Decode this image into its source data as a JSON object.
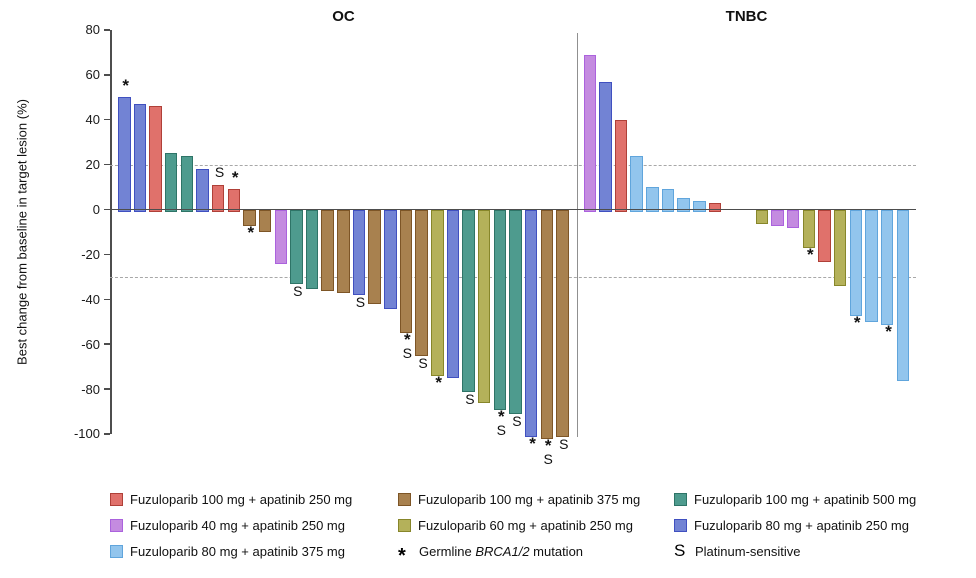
{
  "chart_data": {
    "type": "bar",
    "subtype": "waterfall",
    "ylabel": "Best change from baseline in target lesion (%)",
    "ylim": [
      -100,
      80
    ],
    "yticks": [
      80,
      60,
      40,
      20,
      0,
      -20,
      -40,
      -60,
      -80,
      -100
    ],
    "reference_lines": [
      20,
      -30
    ],
    "grid": "off",
    "legend_position": "bottom",
    "marker_meanings": {
      "star": "Germline BRCA1/2 mutation",
      "S": "Platinum-sensitive"
    },
    "colors": {
      "red": {
        "fill": "#e0716b",
        "border": "#af4038"
      },
      "blue": {
        "fill": "#7283d4",
        "border": "#4050c0"
      },
      "teal": {
        "fill": "#4e9b8e",
        "border": "#2e7467"
      },
      "brown": {
        "fill": "#a8814f",
        "border": "#7d5526"
      },
      "orchid": {
        "fill": "#c48be0",
        "border": "#ab62dd"
      },
      "olive": {
        "fill": "#b4b15a",
        "border": "#87862a"
      },
      "lightblue": {
        "fill": "#92c5ed",
        "border": "#60a5dc"
      }
    },
    "groups": [
      {
        "title": "OC",
        "bars": [
          {
            "value": 50,
            "color": "blue",
            "markers": [
              "*"
            ]
          },
          {
            "value": 47,
            "color": "blue"
          },
          {
            "value": 46,
            "color": "red"
          },
          {
            "value": 25,
            "color": "teal"
          },
          {
            "value": 24,
            "color": "teal"
          },
          {
            "value": 18,
            "color": "blue"
          },
          {
            "value": 11,
            "color": "red",
            "markers": [
              "S"
            ]
          },
          {
            "value": 9,
            "color": "red",
            "markers": [
              "*"
            ]
          },
          {
            "value": -6,
            "color": "brown",
            "markers": [
              "*"
            ]
          },
          {
            "value": -9,
            "color": "brown"
          },
          {
            "value": -23,
            "color": "orchid"
          },
          {
            "value": -32,
            "color": "teal",
            "markers": [
              "S"
            ]
          },
          {
            "value": -34,
            "color": "teal"
          },
          {
            "value": -35,
            "color": "brown"
          },
          {
            "value": -36,
            "color": "brown"
          },
          {
            "value": -37,
            "color": "blue",
            "markers": [
              "S"
            ]
          },
          {
            "value": -41,
            "color": "brown"
          },
          {
            "value": -43,
            "color": "blue"
          },
          {
            "value": -54,
            "color": "brown",
            "markers": [
              "*",
              "S"
            ]
          },
          {
            "value": -64,
            "color": "brown",
            "markers": [
              "S"
            ]
          },
          {
            "value": -73,
            "color": "olive",
            "markers": [
              "*"
            ]
          },
          {
            "value": -74,
            "color": "blue"
          },
          {
            "value": -80,
            "color": "teal",
            "markers": [
              "S"
            ]
          },
          {
            "value": -85,
            "color": "olive"
          },
          {
            "value": -88,
            "color": "teal",
            "markers": [
              "*",
              "S"
            ]
          },
          {
            "value": -90,
            "color": "teal",
            "markers": [
              "S"
            ]
          },
          {
            "value": -100,
            "color": "blue",
            "markers": [
              "*"
            ]
          },
          {
            "value": -101,
            "color": "brown",
            "markers": [
              "*",
              "S"
            ]
          },
          {
            "value": -100,
            "color": "brown",
            "markers": [
              "S"
            ]
          }
        ]
      },
      {
        "title": "TNBC",
        "gap_after_index": 8,
        "gap_slots": 2,
        "bars": [
          {
            "value": 69,
            "color": "orchid"
          },
          {
            "value": 57,
            "color": "blue"
          },
          {
            "value": 40,
            "color": "red"
          },
          {
            "value": 24,
            "color": "lightblue"
          },
          {
            "value": 10,
            "color": "lightblue"
          },
          {
            "value": 9,
            "color": "lightblue"
          },
          {
            "value": 5,
            "color": "lightblue"
          },
          {
            "value": 4,
            "color": "lightblue"
          },
          {
            "value": 3,
            "color": "red"
          },
          {
            "value": -5,
            "color": "olive"
          },
          {
            "value": -6,
            "color": "orchid"
          },
          {
            "value": -7,
            "color": "orchid"
          },
          {
            "value": -16,
            "color": "olive",
            "markers": [
              "*"
            ]
          },
          {
            "value": -22,
            "color": "red"
          },
          {
            "value": -33,
            "color": "olive"
          },
          {
            "value": -46,
            "color": "lightblue",
            "markers": [
              "*"
            ]
          },
          {
            "value": -49,
            "color": "lightblue"
          },
          {
            "value": -50,
            "color": "lightblue",
            "markers": [
              "*"
            ]
          },
          {
            "value": -75,
            "color": "lightblue"
          }
        ]
      }
    ],
    "legend": {
      "columns": [
        [
          {
            "color": "red",
            "label": "Fuzuloparib 100 mg + apatinib 250 mg"
          },
          {
            "color": "orchid",
            "label": "Fuzuloparib 40 mg + apatinib 250 mg"
          },
          {
            "color": "lightblue",
            "label": "Fuzuloparib 80 mg + apatinib 375 mg"
          }
        ],
        [
          {
            "color": "brown",
            "label": "Fuzuloparib 100 mg + apatinib 375 mg"
          },
          {
            "color": "olive",
            "label": "Fuzuloparib 60 mg + apatinib 250 mg"
          },
          {
            "symbol": "*",
            "label_prefix": "Germline ",
            "label_italic": "BRCA1/2",
            "label_suffix": " mutation"
          }
        ],
        [
          {
            "color": "teal",
            "label": "Fuzuloparib 100 mg + apatinib 500 mg"
          },
          {
            "color": "blue",
            "label": "Fuzuloparib 80 mg + apatinib 250 mg"
          },
          {
            "symbol": "S",
            "label": "Platinum-sensitive"
          }
        ]
      ]
    }
  }
}
